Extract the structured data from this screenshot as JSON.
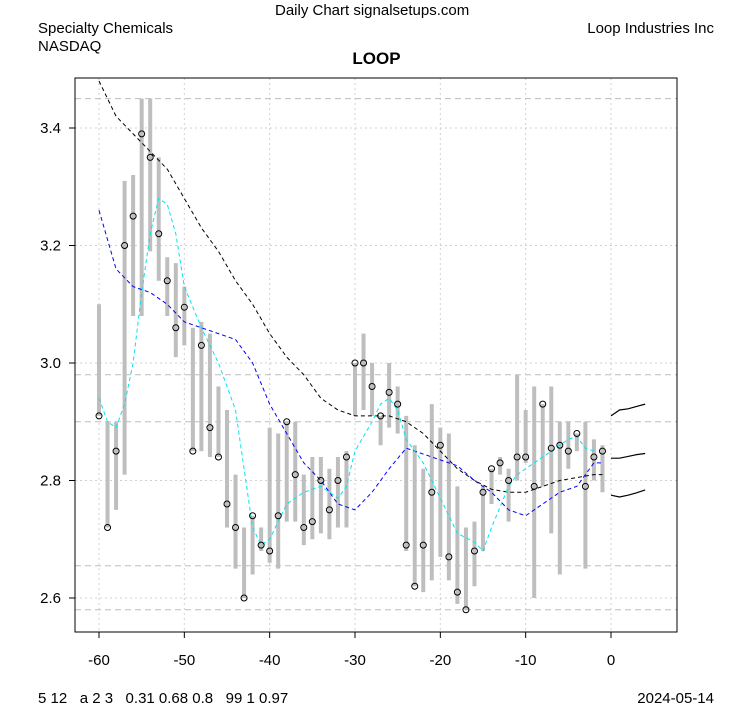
{
  "header": {
    "top_center": "Daily Chart signalsetups.com",
    "sector": "Specialty Chemicals",
    "exchange": "NASDAQ",
    "company": "Loop Industries Inc"
  },
  "footer": {
    "params": "5 12   a 2 3   0.31 0.68 0.8   99 1 0.97",
    "date": "2024-05-14"
  },
  "chart_data": {
    "type": "line",
    "title": "LOOP",
    "xlabel": "",
    "ylabel": "",
    "xlim": [
      -63,
      8
    ],
    "ylim": [
      2.56,
      3.5
    ],
    "xticks": [
      -60,
      -50,
      -40,
      -30,
      -20,
      -10,
      0
    ],
    "yticks": [
      2.6,
      2.8,
      3.0,
      3.2,
      3.4
    ],
    "grid": true,
    "bars": {
      "x": [
        -60,
        -59,
        -58,
        -57,
        -56,
        -55,
        -54,
        -53,
        -52,
        -51,
        -50,
        -49,
        -48,
        -47,
        -46,
        -45,
        -44,
        -43,
        -42,
        -41,
        -40,
        -39,
        -38,
        -37,
        -36,
        -35,
        -34,
        -33,
        -32,
        -31,
        -30,
        -29,
        -28,
        -27,
        -26,
        -25,
        -24,
        -23,
        -22,
        -21,
        -20,
        -19,
        -18,
        -17,
        -16,
        -15,
        -14,
        -13,
        -12,
        -11,
        -10,
        -9,
        -8,
        -7,
        -6,
        -5,
        -4,
        -3,
        -2,
        -1
      ],
      "low": [
        2.91,
        2.72,
        2.75,
        2.81,
        3.08,
        3.08,
        3.19,
        3.14,
        3.08,
        3.01,
        3.03,
        2.85,
        2.85,
        2.84,
        2.84,
        2.72,
        2.65,
        2.6,
        2.64,
        2.68,
        2.66,
        2.65,
        2.73,
        2.73,
        2.69,
        2.7,
        2.71,
        2.7,
        2.72,
        2.72,
        2.91,
        2.92,
        2.91,
        2.86,
        2.89,
        2.88,
        2.68,
        2.62,
        2.61,
        2.63,
        2.67,
        2.63,
        2.59,
        2.58,
        2.62,
        2.68,
        2.76,
        2.81,
        2.73,
        2.8,
        2.83,
        2.6,
        2.79,
        2.71,
        2.64,
        2.82,
        2.85,
        2.65,
        2.8,
        2.78
      ],
      "high": [
        3.1,
        2.9,
        2.9,
        3.31,
        3.32,
        3.45,
        3.45,
        3.35,
        3.18,
        3.17,
        3.13,
        3.06,
        3.07,
        3.05,
        2.96,
        2.92,
        2.81,
        2.72,
        2.74,
        2.72,
        2.89,
        2.88,
        2.9,
        2.9,
        2.81,
        2.84,
        2.84,
        2.82,
        2.84,
        2.85,
        3.0,
        3.05,
        3.0,
        2.91,
        3.0,
        2.96,
        2.91,
        2.86,
        2.82,
        2.93,
        2.89,
        2.88,
        2.79,
        2.72,
        2.73,
        2.79,
        2.82,
        2.84,
        2.82,
        2.98,
        2.92,
        2.96,
        2.93,
        2.96,
        2.9,
        2.9,
        2.88,
        2.9,
        2.87,
        2.86
      ],
      "close": [
        2.91,
        2.72,
        2.85,
        3.2,
        3.25,
        3.39,
        3.35,
        3.22,
        3.14,
        3.06,
        3.095,
        2.85,
        3.03,
        2.89,
        2.84,
        2.76,
        2.72,
        2.6,
        2.74,
        2.69,
        2.68,
        2.74,
        2.9,
        2.81,
        2.72,
        2.73,
        2.8,
        2.75,
        2.8,
        2.84,
        3.0,
        3.0,
        2.96,
        2.91,
        2.95,
        2.93,
        2.69,
        2.62,
        2.69,
        2.78,
        2.86,
        2.67,
        2.61,
        2.58,
        2.68,
        2.78,
        2.82,
        2.83,
        2.8,
        2.84,
        2.84,
        2.79,
        2.93,
        2.855,
        2.86,
        2.85,
        2.88,
        2.79,
        2.84,
        2.85
      ]
    },
    "series": [
      {
        "name": "slow",
        "color": "#000000",
        "x": [
          -60,
          -58,
          -56,
          -54,
          -52,
          -50,
          -48,
          -46,
          -44,
          -42,
          -40,
          -38,
          -36,
          -34,
          -32,
          -30,
          -28,
          -26,
          -24,
          -22,
          -20,
          -18,
          -16,
          -14,
          -12,
          -10,
          -8,
          -6,
          -4,
          -2,
          -1
        ],
        "y": [
          3.48,
          3.42,
          3.39,
          3.36,
          3.33,
          3.28,
          3.23,
          3.19,
          3.14,
          3.1,
          3.05,
          3.01,
          2.98,
          2.94,
          2.92,
          2.91,
          2.91,
          2.91,
          2.9,
          2.88,
          2.85,
          2.82,
          2.8,
          2.785,
          2.78,
          2.78,
          2.79,
          2.8,
          2.805,
          2.81,
          2.81
        ]
      },
      {
        "name": "mid",
        "color": "#0000ff",
        "x": [
          -60,
          -58,
          -56,
          -54,
          -52,
          -50,
          -48,
          -46,
          -44,
          -42,
          -40,
          -38,
          -36,
          -34,
          -32,
          -30,
          -28,
          -26,
          -24,
          -22,
          -20,
          -18,
          -16,
          -14,
          -12,
          -10,
          -8,
          -6,
          -4,
          -2,
          -1
        ],
        "y": [
          3.26,
          3.16,
          3.13,
          3.12,
          3.1,
          3.07,
          3.06,
          3.05,
          3.04,
          3.0,
          2.93,
          2.88,
          2.83,
          2.8,
          2.76,
          2.75,
          2.78,
          2.82,
          2.855,
          2.845,
          2.835,
          2.825,
          2.8,
          2.78,
          2.75,
          2.74,
          2.76,
          2.78,
          2.79,
          2.83,
          2.83
        ]
      },
      {
        "name": "fast",
        "color": "#00e5ee",
        "x": [
          -60,
          -59,
          -58,
          -57,
          -56,
          -55,
          -54,
          -53,
          -52,
          -51,
          -50,
          -48,
          -46,
          -44,
          -43,
          -42,
          -41,
          -40,
          -38,
          -36,
          -34,
          -33,
          -32,
          -31,
          -30,
          -28,
          -27,
          -26,
          -25,
          -24,
          -23,
          -22,
          -20,
          -18,
          -16,
          -15,
          -14,
          -12,
          -11,
          -10,
          -8,
          -6,
          -5,
          -4,
          -3,
          -2
        ],
        "y": [
          2.94,
          2.9,
          2.89,
          2.93,
          3.0,
          3.12,
          3.22,
          3.28,
          3.27,
          3.22,
          3.13,
          3.06,
          3.0,
          2.92,
          2.82,
          2.72,
          2.69,
          2.7,
          2.76,
          2.78,
          2.79,
          2.78,
          2.77,
          2.79,
          2.85,
          2.9,
          2.93,
          2.94,
          2.92,
          2.87,
          2.85,
          2.83,
          2.77,
          2.71,
          2.695,
          2.68,
          2.72,
          2.79,
          2.81,
          2.82,
          2.84,
          2.86,
          2.87,
          2.875,
          2.855,
          2.85
        ]
      }
    ],
    "projections": [
      {
        "x": [
          0,
          1,
          2,
          3,
          4
        ],
        "y": [
          2.91,
          2.92,
          2.922,
          2.926,
          2.93
        ]
      },
      {
        "x": [
          0,
          1,
          2,
          3,
          4
        ],
        "y": [
          2.838,
          2.838,
          2.841,
          2.844,
          2.846
        ]
      },
      {
        "x": [
          0,
          1,
          2,
          3,
          4
        ],
        "y": [
          2.775,
          2.772,
          2.775,
          2.779,
          2.784
        ]
      }
    ],
    "hlines": [
      3.45,
      2.98,
      2.9,
      2.655,
      2.58
    ]
  }
}
